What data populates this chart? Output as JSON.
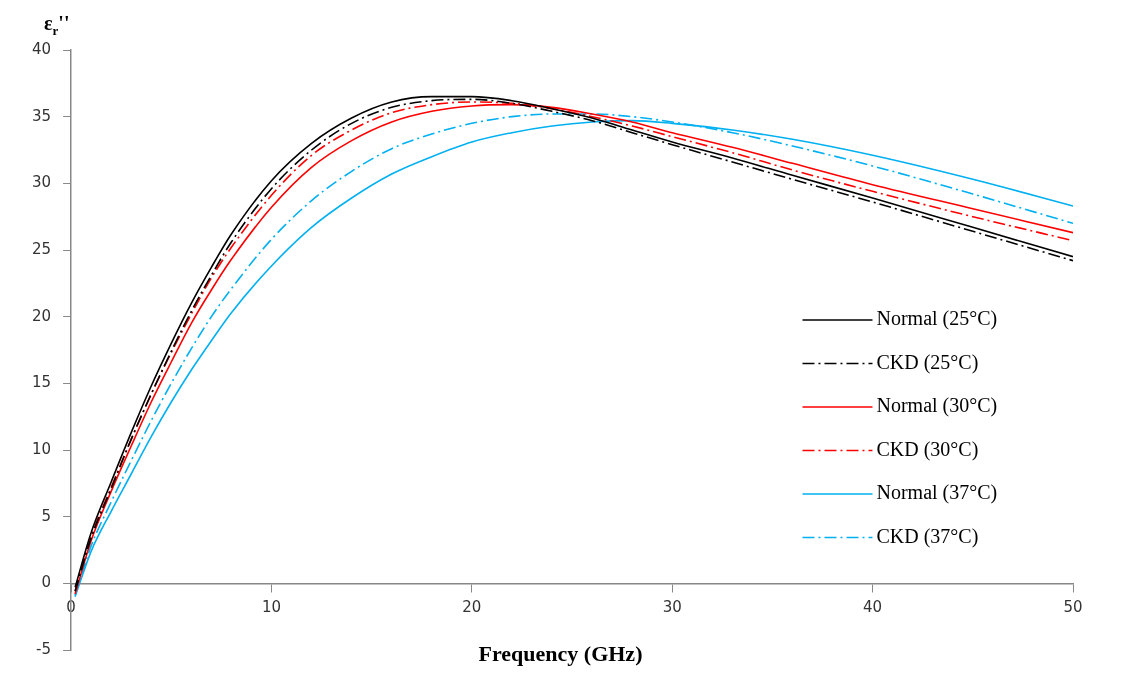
{
  "chart_data": {
    "type": "line",
    "xlabel": "Frequency (GHz)",
    "ylabel": "ε$_{r}$''",
    "x": [
      0.2,
      1,
      2,
      3,
      4,
      5,
      6,
      7,
      8,
      10,
      12,
      14,
      16,
      18,
      20,
      22,
      24,
      26,
      28,
      30,
      33,
      36,
      40,
      45,
      50
    ],
    "series": [
      {
        "name": "Normal (25°C)",
        "color": "#000000",
        "line_style": "solid",
        "values": [
          -0.3,
          3.8,
          7.6,
          11.3,
          14.8,
          18.0,
          21.0,
          23.7,
          26.2,
          30.2,
          33.0,
          34.9,
          36.1,
          36.5,
          36.5,
          36.2,
          35.6,
          34.9,
          34.0,
          33.1,
          31.9,
          30.6,
          28.9,
          26.7,
          24.5
        ]
      },
      {
        "name": "CKD (25°C)",
        "color": "#000000",
        "line_style": "dashed",
        "values": [
          -0.6,
          3.4,
          7.1,
          10.8,
          14.2,
          17.4,
          20.4,
          23.1,
          25.6,
          29.6,
          32.5,
          34.5,
          35.7,
          36.2,
          36.3,
          36.0,
          35.4,
          34.7,
          33.8,
          32.9,
          31.6,
          30.3,
          28.6,
          26.4,
          24.2
        ]
      },
      {
        "name": "Normal (30°C)",
        "color": "#ff0000",
        "line_style": "solid",
        "values": [
          -0.8,
          3.2,
          6.9,
          10.3,
          13.6,
          16.6,
          19.5,
          22.0,
          24.3,
          28.2,
          31.2,
          33.2,
          34.6,
          35.4,
          35.8,
          35.9,
          35.7,
          35.2,
          34.6,
          33.8,
          32.7,
          31.5,
          29.9,
          28.1,
          26.3
        ]
      },
      {
        "name": "CKD (30°C)",
        "color": "#ff0000",
        "line_style": "dashed",
        "values": [
          -0.6,
          3.5,
          7.2,
          10.8,
          14.2,
          17.3,
          20.2,
          22.9,
          25.2,
          29.1,
          32.1,
          34.0,
          35.3,
          35.9,
          36.1,
          36.0,
          35.6,
          35.0,
          34.3,
          33.5,
          32.3,
          31.0,
          29.4,
          27.5,
          25.7
        ]
      },
      {
        "name": "Normal (37°C)",
        "color": "#00b0f0",
        "line_style": "solid",
        "values": [
          -1.0,
          2.4,
          5.4,
          8.2,
          11.0,
          13.6,
          16.0,
          18.2,
          20.3,
          23.8,
          26.7,
          28.9,
          30.7,
          32.0,
          33.1,
          33.8,
          34.3,
          34.6,
          34.7,
          34.5,
          34.0,
          33.3,
          32.1,
          30.3,
          28.3
        ]
      },
      {
        "name": "CKD (37°C)",
        "color": "#00b0f0",
        "line_style": "dashed",
        "values": [
          -0.9,
          2.8,
          6.1,
          9.2,
          12.2,
          15.0,
          17.6,
          20.0,
          22.1,
          25.8,
          28.7,
          30.9,
          32.6,
          33.7,
          34.5,
          35.0,
          35.2,
          35.2,
          35.0,
          34.6,
          33.8,
          32.8,
          31.3,
          29.2,
          27.0
        ]
      }
    ],
    "xlim": [
      0,
      50
    ],
    "xticks": [
      0,
      10,
      20,
      30,
      40,
      50
    ],
    "ylim": [
      -5,
      40
    ],
    "yticks": [
      -5,
      0,
      5,
      10,
      15,
      20,
      25,
      30,
      35,
      40
    ],
    "grid": false,
    "legend": "right",
    "marker": "none"
  }
}
